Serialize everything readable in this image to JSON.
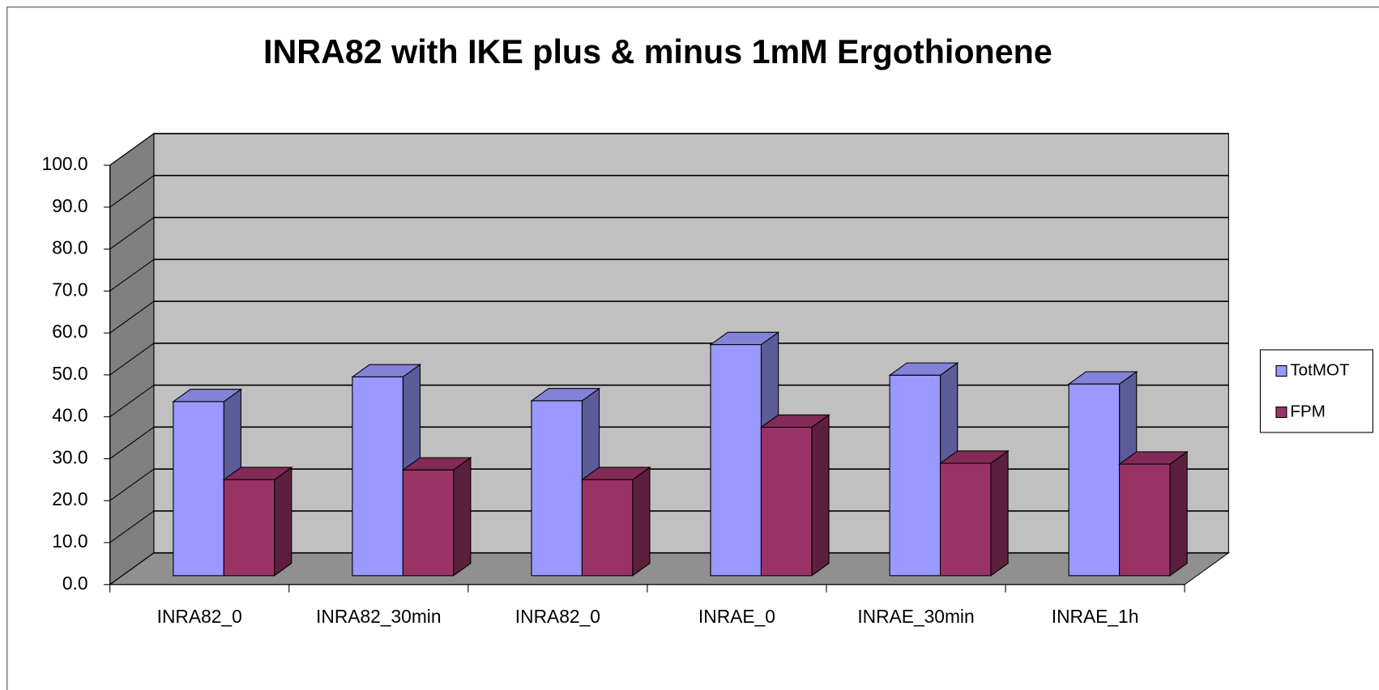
{
  "chart_data": {
    "type": "bar3d",
    "title": "INRA82 with IKE plus & minus 1mM Ergothionene",
    "categories": [
      "INRA82_0",
      "INRA82_30min",
      "INRA82_0",
      "INRAE_0",
      "INRAE_30min",
      "INRAE_1h"
    ],
    "series": [
      {
        "name": "TotMOT",
        "color": "#9999ff",
        "values": [
          41.5,
          47.4,
          41.7,
          55.1,
          47.8,
          45.7
        ]
      },
      {
        "name": "FPM",
        "color": "#993366",
        "values": [
          22.9,
          25.2,
          22.9,
          35.4,
          26.8,
          26.6
        ]
      }
    ],
    "ylim": [
      0,
      100
    ],
    "yticks": [
      {
        "value": 0,
        "label": "0.0"
      },
      {
        "value": 10,
        "label": "10.0"
      },
      {
        "value": 20,
        "label": "20.0"
      },
      {
        "value": 30,
        "label": "30.0"
      },
      {
        "value": 40,
        "label": "40.0"
      },
      {
        "value": 50,
        "label": "50.0"
      },
      {
        "value": 60,
        "label": "60.0"
      },
      {
        "value": 70,
        "label": "70.0"
      },
      {
        "value": 80,
        "label": "80.0"
      },
      {
        "value": 90,
        "label": "90.0"
      },
      {
        "value": 100,
        "label": "100.0"
      }
    ],
    "grid": true,
    "legend": "right"
  }
}
